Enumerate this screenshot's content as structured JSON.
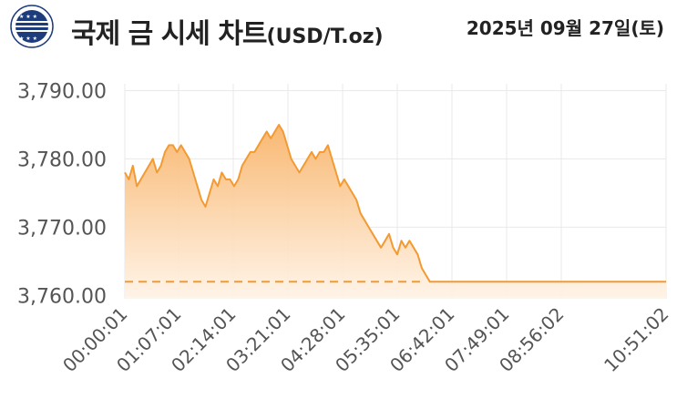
{
  "header": {
    "logo_text": "SAMSUNG",
    "title": "국제 금 시세 차트",
    "unit": "(USD/T.oz)",
    "date": "2025년 09월 27일(토)"
  },
  "colors": {
    "line": "#f39a32",
    "fill_top": "#f8b46a",
    "fill_bottom": "#fff3e6",
    "dashed": "#f39a32",
    "grid": "#e9e9e9",
    "logo": "#1d3c7c"
  },
  "chart_data": {
    "type": "area",
    "title": "국제 금 시세 차트",
    "xlabel": "",
    "ylabel": "",
    "ylim": [
      3759.5,
      3791
    ],
    "yticks": [
      3760,
      3770,
      3780,
      3790
    ],
    "ytick_labels": [
      "3,760.00",
      "3,770.00",
      "3,780.00",
      "3,790.00"
    ],
    "xticks": [
      "00:00:01",
      "01:07:01",
      "02:14:01",
      "03:21:01",
      "04:28:01",
      "05:35:01",
      "06:42:01",
      "07:49:01",
      "08:56:02",
      "10:51:02"
    ],
    "dashed_reference": 3762,
    "series": [
      {
        "x": [
          "00:00:01",
          "00:05:00",
          "00:10:00",
          "00:15:00",
          "00:20:00",
          "00:25:00",
          "00:30:00",
          "00:35:00",
          "00:40:00",
          "00:45:00",
          "00:50:00",
          "00:55:00",
          "01:00:00",
          "01:05:00",
          "01:10:00",
          "01:15:00",
          "01:20:00",
          "01:25:00",
          "01:30:00",
          "01:35:00",
          "01:40:00",
          "01:45:00",
          "01:50:00",
          "01:55:00",
          "02:00:00",
          "02:05:00",
          "02:10:00",
          "02:15:00",
          "02:20:00",
          "02:25:00",
          "02:30:00",
          "02:35:00",
          "02:40:00",
          "02:45:00",
          "02:50:00",
          "02:55:00",
          "03:00:00",
          "03:05:00",
          "03:10:00",
          "03:15:00",
          "03:20:00",
          "03:25:00",
          "03:30:00",
          "03:35:00",
          "03:40:00",
          "03:45:00",
          "03:50:00",
          "03:55:00",
          "04:00:00",
          "04:05:00",
          "04:10:00",
          "04:15:00",
          "04:20:00",
          "04:25:00",
          "04:30:00",
          "04:35:00",
          "04:40:00",
          "04:45:00",
          "04:50:00",
          "04:55:00",
          "05:00:00",
          "05:05:00",
          "05:10:00",
          "05:15:00",
          "05:20:00",
          "05:25:00",
          "05:30:00",
          "05:35:00",
          "05:40:00",
          "05:45:00",
          "05:50:00",
          "05:55:00",
          "06:00:00",
          "06:05:00",
          "06:10:00",
          "06:15:00",
          "06:20:00",
          "06:42:01",
          "07:49:01",
          "08:56:02",
          "10:51:02"
        ],
        "values": [
          3778,
          3777,
          3779,
          3776,
          3777,
          3778,
          3779,
          3780,
          3778,
          3779,
          3781,
          3782,
          3782,
          3781,
          3782,
          3781,
          3780,
          3778,
          3776,
          3774,
          3773,
          3775,
          3777,
          3776,
          3778,
          3777,
          3777,
          3776,
          3777,
          3779,
          3780,
          3781,
          3781,
          3782,
          3783,
          3784,
          3783,
          3784,
          3785,
          3784,
          3782,
          3780,
          3779,
          3778,
          3779,
          3780,
          3781,
          3780,
          3781,
          3781,
          3782,
          3780,
          3778,
          3776,
          3777,
          3776,
          3775,
          3774,
          3772,
          3771,
          3770,
          3769,
          3768,
          3767,
          3768,
          3769,
          3767,
          3766,
          3768,
          3767,
          3768,
          3767,
          3766,
          3764,
          3763,
          3762,
          3762,
          3762,
          3762,
          3762,
          3762
        ]
      }
    ],
    "grid": true,
    "legend": "none"
  }
}
